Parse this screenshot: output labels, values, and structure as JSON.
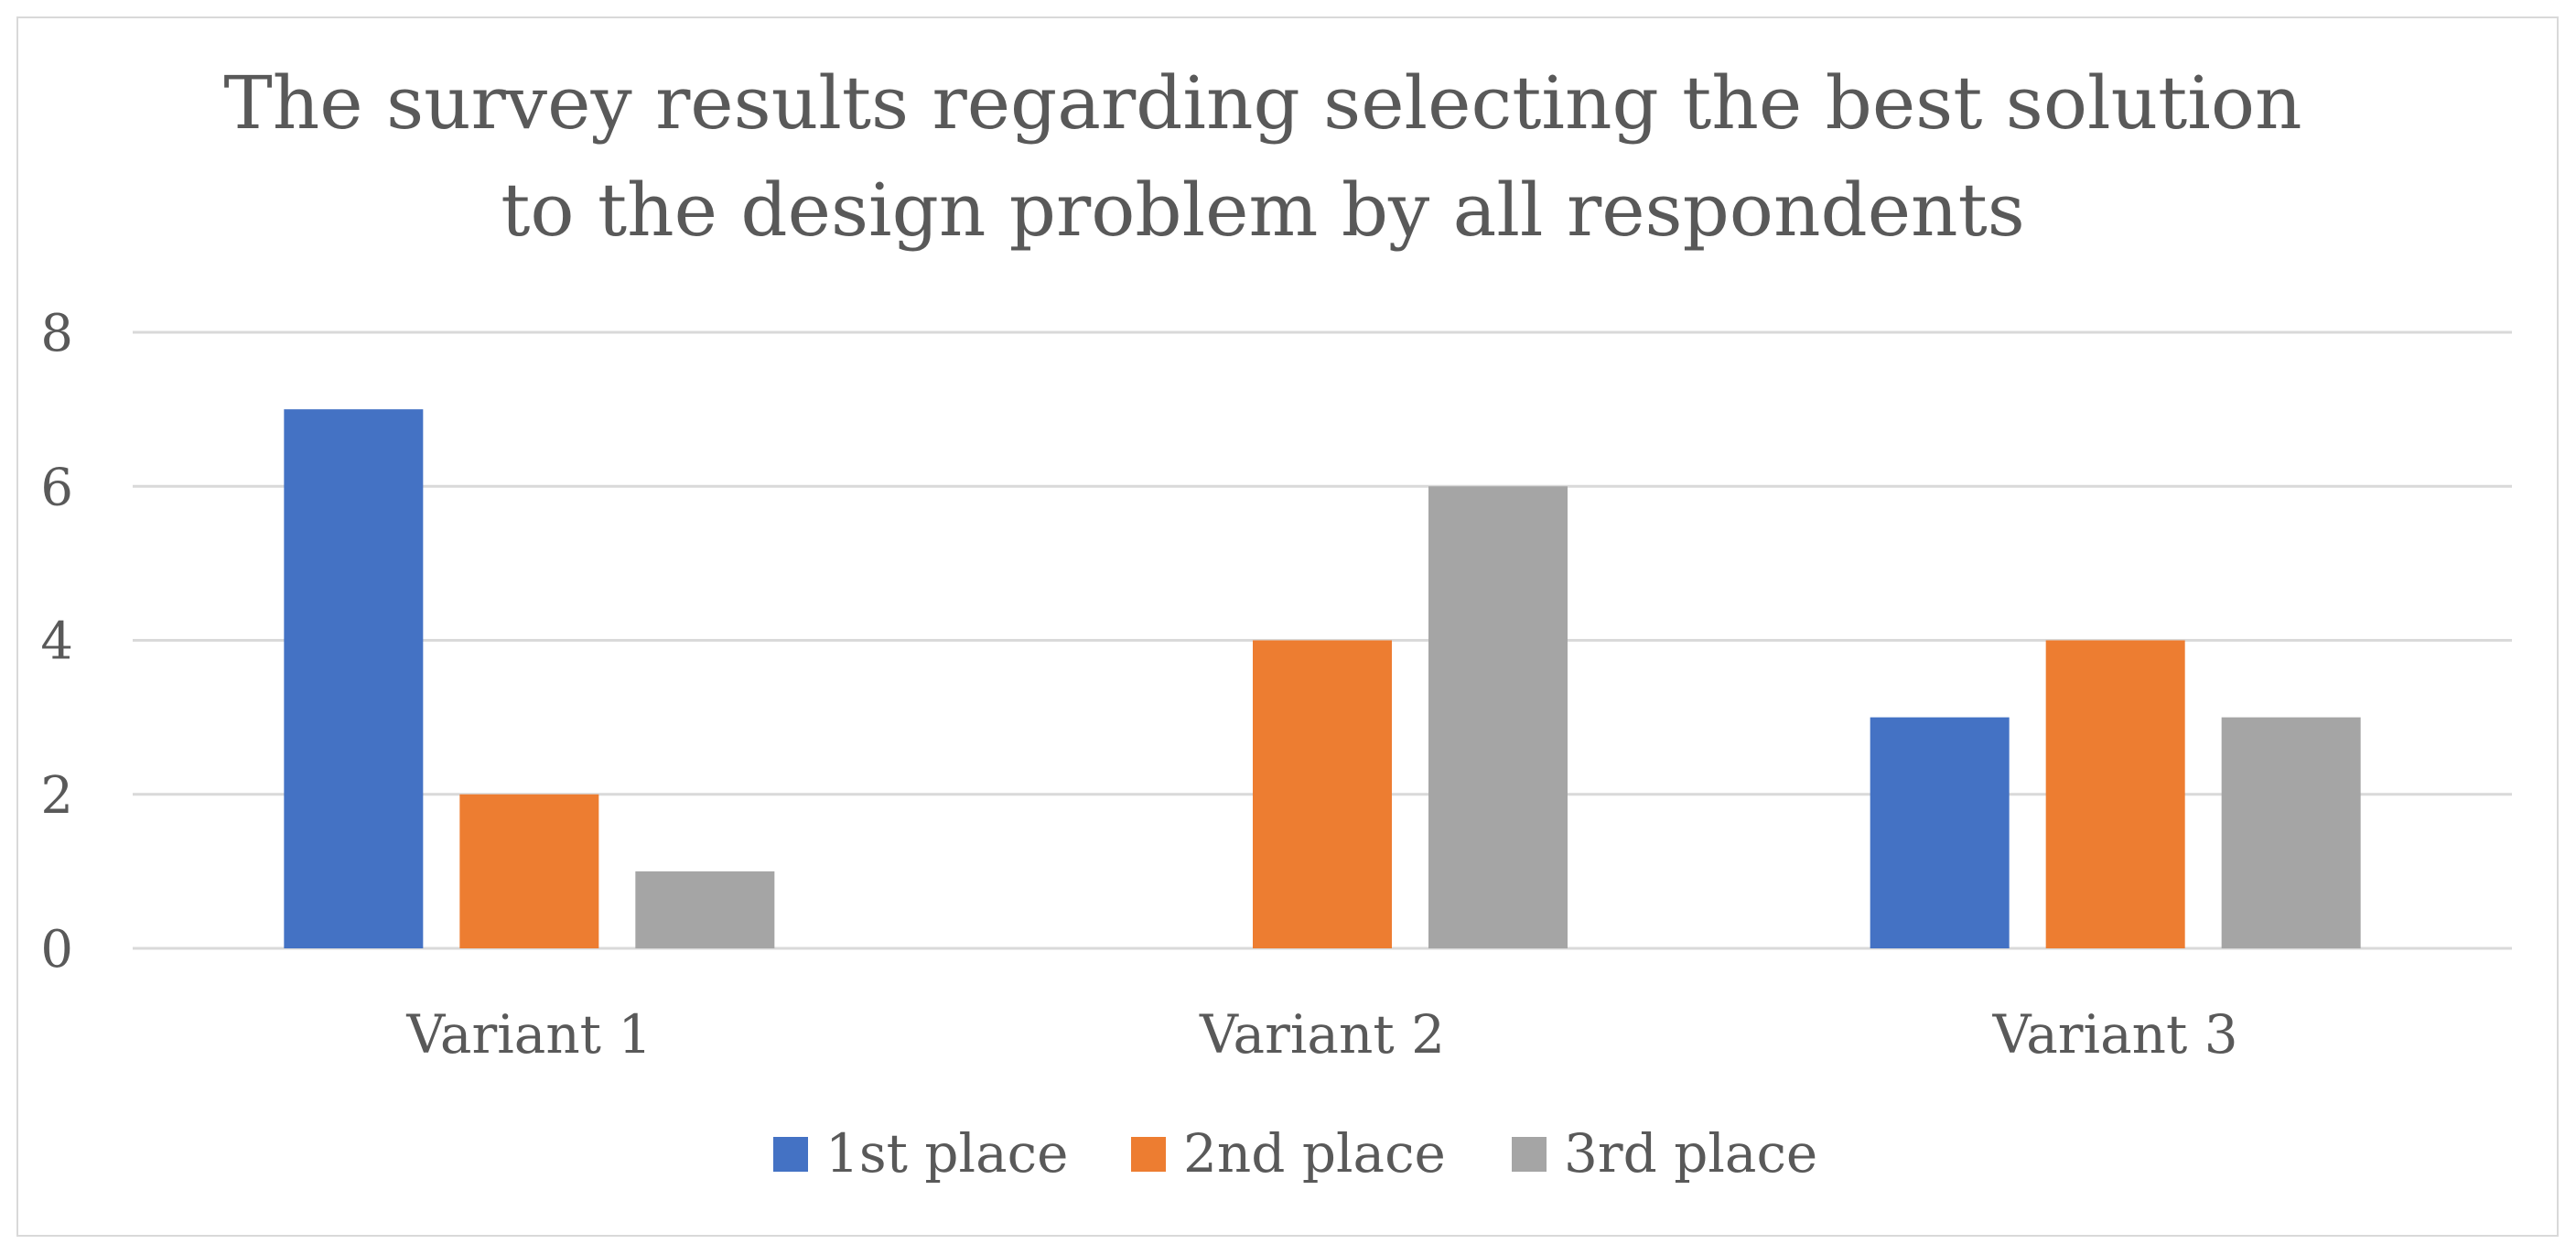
{
  "chart_data": {
    "type": "bar",
    "title_lines": [
      "The survey results regarding selecting the best solution",
      "to the design problem by all respondents"
    ],
    "categories": [
      "Variant 1",
      "Variant 2",
      "Variant 3"
    ],
    "series": [
      {
        "name": "1st place",
        "color": "#4472c4",
        "values": [
          7,
          0,
          3
        ]
      },
      {
        "name": "2nd place",
        "color": "#ed7d31",
        "values": [
          2,
          4,
          4
        ]
      },
      {
        "name": "3rd place",
        "color": "#a5a5a5",
        "values": [
          1,
          6,
          3
        ]
      }
    ],
    "ylim": [
      0,
      8
    ],
    "yticks": [
      "0",
      "2",
      "4",
      "6",
      "8"
    ],
    "grid": true,
    "gridline_color": "#d9d9d9",
    "legend_position": "bottom",
    "xlabel": "",
    "ylabel": ""
  }
}
